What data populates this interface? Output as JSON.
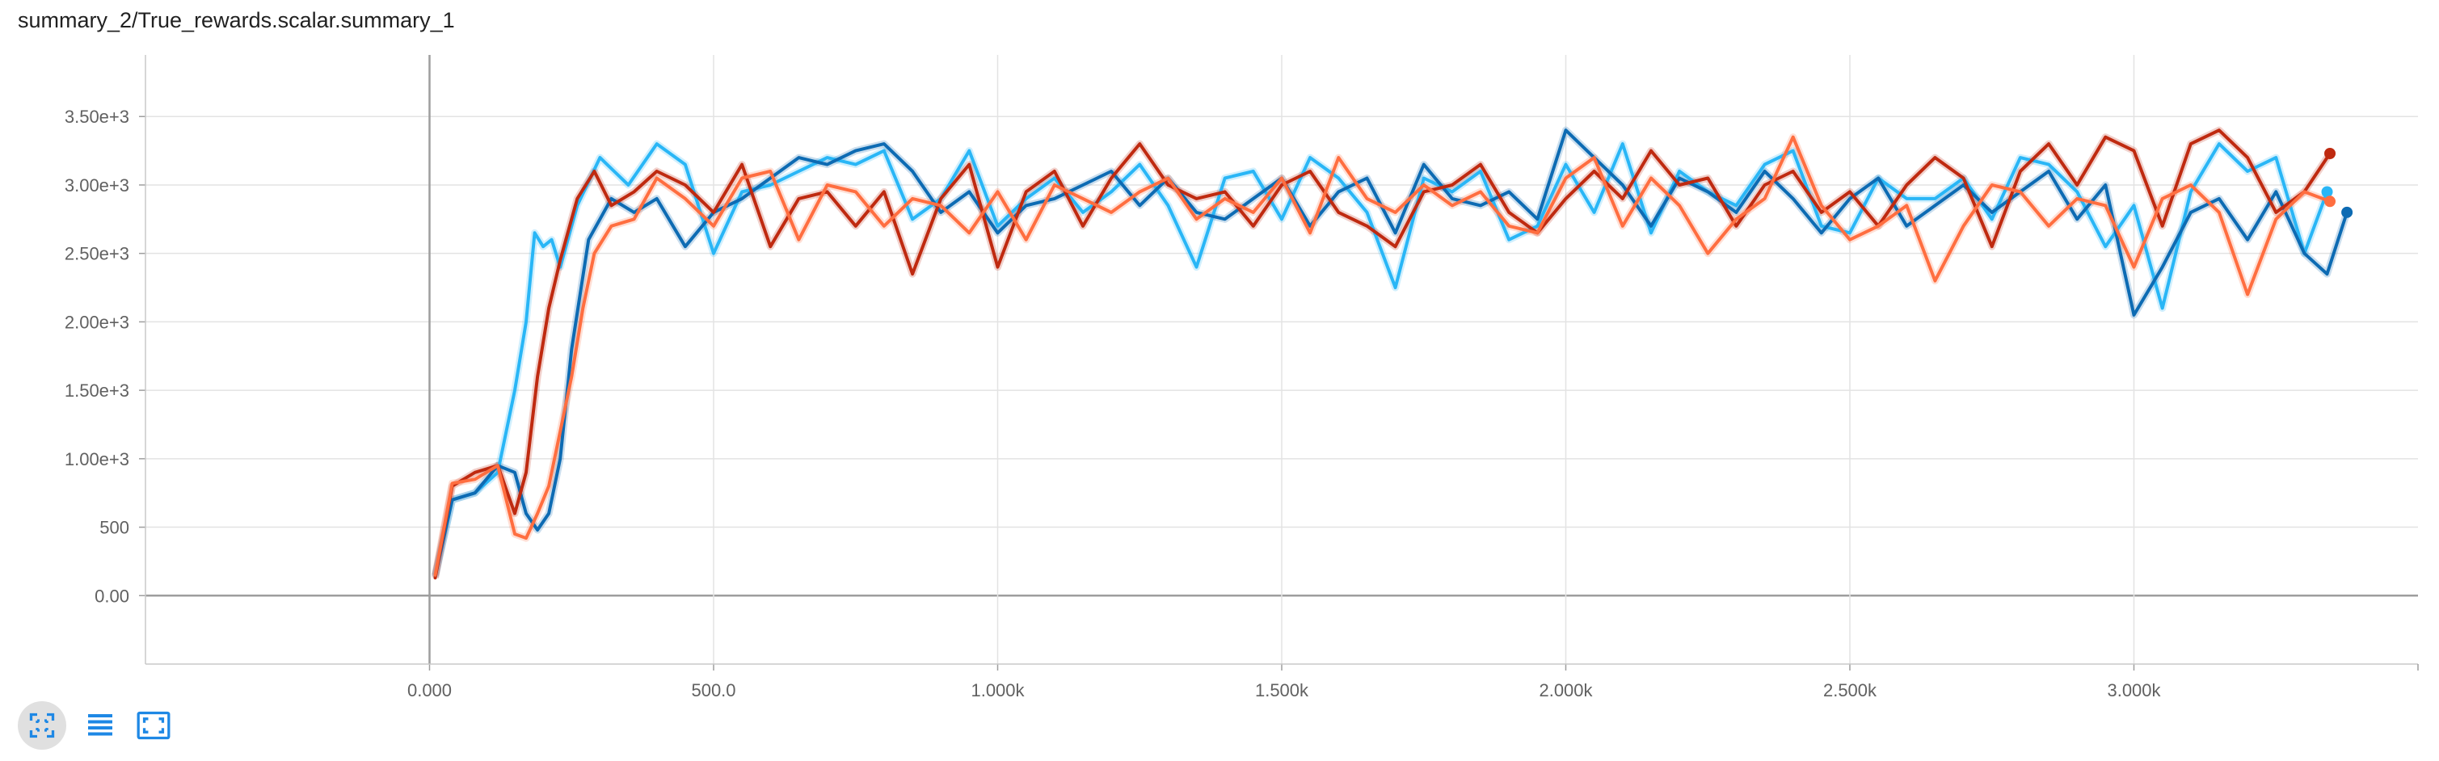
{
  "title": "summary_2/True_rewards.scalar.summary_1",
  "toolbar": {
    "buttons": [
      {
        "icon": "fit-domain-icon",
        "active": true
      },
      {
        "icon": "list-icon",
        "active": false
      },
      {
        "icon": "expand-icon",
        "active": false
      }
    ],
    "accent": "#1e88e5"
  },
  "chart_data": {
    "type": "line",
    "title": "summary_2/True_rewards.scalar.summary_1",
    "xlabel": "",
    "ylabel": "",
    "xlim": [
      -500,
      3500
    ],
    "ylim": [
      -500,
      3950
    ],
    "grid": true,
    "x_ticks": [
      {
        "value": 0,
        "label": "0.000"
      },
      {
        "value": 500,
        "label": "500.0"
      },
      {
        "value": 1000,
        "label": "1.000k"
      },
      {
        "value": 1500,
        "label": "1.500k"
      },
      {
        "value": 2000,
        "label": "2.000k"
      },
      {
        "value": 2500,
        "label": "2.500k"
      },
      {
        "value": 3000,
        "label": "3.000k"
      }
    ],
    "y_ticks": [
      {
        "value": 0,
        "label": "0.00"
      },
      {
        "value": 500,
        "label": "500"
      },
      {
        "value": 1000,
        "label": "1.00e+3"
      },
      {
        "value": 1500,
        "label": "1.50e+3"
      },
      {
        "value": 2000,
        "label": "2.00e+3"
      },
      {
        "value": 2500,
        "label": "2.50e+3"
      },
      {
        "value": 3000,
        "label": "3.00e+3"
      },
      {
        "value": 3500,
        "label": "3.50e+3"
      }
    ],
    "series": [
      {
        "color": "#29b6f6",
        "x": [
          10,
          40,
          80,
          120,
          150,
          170,
          185,
          200,
          215,
          230,
          260,
          300,
          350,
          400,
          450,
          500,
          550,
          600,
          650,
          700,
          750,
          800,
          850,
          900,
          950,
          1000,
          1050,
          1100,
          1150,
          1200,
          1250,
          1300,
          1350,
          1400,
          1450,
          1500,
          1550,
          1600,
          1650,
          1700,
          1750,
          1800,
          1850,
          1900,
          1950,
          2000,
          2050,
          2100,
          2150,
          2200,
          2250,
          2300,
          2350,
          2400,
          2450,
          2500,
          2550,
          2600,
          2650,
          2700,
          2750,
          2800,
          2850,
          2900,
          2950,
          3000,
          3050,
          3100,
          3150,
          3200,
          3250,
          3300,
          3340
        ],
        "y": [
          150,
          700,
          750,
          900,
          1500,
          2000,
          2650,
          2550,
          2600,
          2400,
          2850,
          3200,
          3000,
          3300,
          3150,
          2500,
          2950,
          3000,
          3100,
          3200,
          3150,
          3250,
          2750,
          2900,
          3250,
          2700,
          2900,
          3050,
          2800,
          2950,
          3150,
          2850,
          2400,
          3050,
          3100,
          2750,
          3200,
          3050,
          2800,
          2250,
          3050,
          2950,
          3100,
          2600,
          2700,
          3150,
          2800,
          3300,
          2650,
          3100,
          2950,
          2850,
          3150,
          3250,
          2700,
          2650,
          3050,
          2900,
          2900,
          3050,
          2750,
          3200,
          3150,
          2950,
          2550,
          2850,
          2100,
          2950,
          3300,
          3100,
          3200,
          2500,
          2950
        ]
      },
      {
        "color": "#0d6bb3",
        "x": [
          10,
          40,
          80,
          120,
          150,
          170,
          190,
          210,
          230,
          250,
          280,
          320,
          360,
          400,
          450,
          500,
          550,
          600,
          650,
          700,
          750,
          800,
          850,
          900,
          950,
          1000,
          1050,
          1100,
          1150,
          1200,
          1250,
          1300,
          1350,
          1400,
          1450,
          1500,
          1550,
          1600,
          1650,
          1700,
          1750,
          1800,
          1850,
          1900,
          1950,
          2000,
          2050,
          2100,
          2150,
          2200,
          2250,
          2300,
          2350,
          2400,
          2450,
          2500,
          2550,
          2600,
          2650,
          2700,
          2750,
          2800,
          2850,
          2900,
          2950,
          3000,
          3050,
          3100,
          3150,
          3200,
          3250,
          3300,
          3340,
          3375
        ],
        "y": [
          140,
          700,
          750,
          950,
          900,
          600,
          480,
          600,
          1000,
          1800,
          2600,
          2900,
          2800,
          2900,
          2550,
          2800,
          2900,
          3050,
          3200,
          3150,
          3250,
          3300,
          3100,
          2800,
          2950,
          2650,
          2850,
          2900,
          3000,
          3100,
          2850,
          3050,
          2800,
          2750,
          2900,
          3050,
          2700,
          2950,
          3050,
          2650,
          3150,
          2900,
          2850,
          2950,
          2750,
          3400,
          3200,
          3000,
          2700,
          3050,
          2950,
          2800,
          3100,
          2900,
          2650,
          2900,
          3050,
          2700,
          2850,
          3000,
          2800,
          2950,
          3100,
          2750,
          3000,
          2050,
          2400,
          2800,
          2900,
          2600,
          2950,
          2500,
          2350,
          2800
        ]
      },
      {
        "color": "#bf2a10",
        "x": [
          10,
          40,
          80,
          120,
          150,
          170,
          190,
          210,
          230,
          260,
          290,
          320,
          360,
          400,
          450,
          500,
          550,
          600,
          650,
          700,
          750,
          800,
          850,
          900,
          950,
          1000,
          1050,
          1100,
          1150,
          1200,
          1250,
          1300,
          1350,
          1400,
          1450,
          1500,
          1550,
          1600,
          1650,
          1700,
          1750,
          1800,
          1850,
          1900,
          1950,
          2000,
          2050,
          2100,
          2150,
          2200,
          2250,
          2300,
          2350,
          2400,
          2450,
          2500,
          2550,
          2600,
          2650,
          2700,
          2750,
          2800,
          2850,
          2900,
          2950,
          3000,
          3050,
          3100,
          3150,
          3200,
          3250,
          3300,
          3345
        ],
        "y": [
          130,
          800,
          900,
          950,
          600,
          900,
          1600,
          2100,
          2450,
          2900,
          3100,
          2850,
          2950,
          3100,
          3000,
          2800,
          3150,
          2550,
          2900,
          2950,
          2700,
          2950,
          2350,
          2900,
          3150,
          2400,
          2950,
          3100,
          2700,
          3050,
          3300,
          3000,
          2900,
          2950,
          2700,
          3000,
          3100,
          2800,
          2700,
          2550,
          2950,
          3000,
          3150,
          2800,
          2650,
          2900,
          3100,
          2900,
          3250,
          3000,
          3050,
          2700,
          3000,
          3100,
          2800,
          2950,
          2700,
          3000,
          3200,
          3050,
          2550,
          3100,
          3300,
          3000,
          3350,
          3250,
          2700,
          3300,
          3400,
          3200,
          2800,
          2950,
          3230
        ]
      },
      {
        "color": "#ff6e40",
        "x": [
          10,
          40,
          80,
          120,
          150,
          170,
          190,
          210,
          230,
          250,
          270,
          290,
          320,
          360,
          400,
          450,
          500,
          550,
          600,
          650,
          700,
          750,
          800,
          850,
          900,
          950,
          1000,
          1050,
          1100,
          1150,
          1200,
          1250,
          1300,
          1350,
          1400,
          1450,
          1500,
          1550,
          1600,
          1650,
          1700,
          1750,
          1800,
          1850,
          1900,
          1950,
          2000,
          2050,
          2100,
          2150,
          2200,
          2250,
          2300,
          2350,
          2400,
          2450,
          2500,
          2550,
          2600,
          2650,
          2700,
          2750,
          2800,
          2850,
          2900,
          2950,
          3000,
          3050,
          3100,
          3150,
          3200,
          3250,
          3300,
          3345
        ],
        "y": [
          150,
          820,
          850,
          950,
          450,
          420,
          600,
          800,
          1200,
          1600,
          2100,
          2500,
          2700,
          2750,
          3050,
          2900,
          2700,
          3050,
          3100,
          2600,
          3000,
          2950,
          2700,
          2900,
          2850,
          2650,
          2950,
          2600,
          3000,
          2900,
          2800,
          2950,
          3050,
          2750,
          2900,
          2800,
          3050,
          2650,
          3200,
          2900,
          2800,
          3000,
          2850,
          2950,
          2700,
          2650,
          3050,
          3200,
          2700,
          3050,
          2850,
          2500,
          2750,
          2900,
          3350,
          2850,
          2600,
          2700,
          2850,
          2300,
          2700,
          3000,
          2950,
          2700,
          2900,
          2850,
          2400,
          2900,
          3000,
          2800,
          2200,
          2750,
          2950,
          2880
        ]
      }
    ]
  }
}
